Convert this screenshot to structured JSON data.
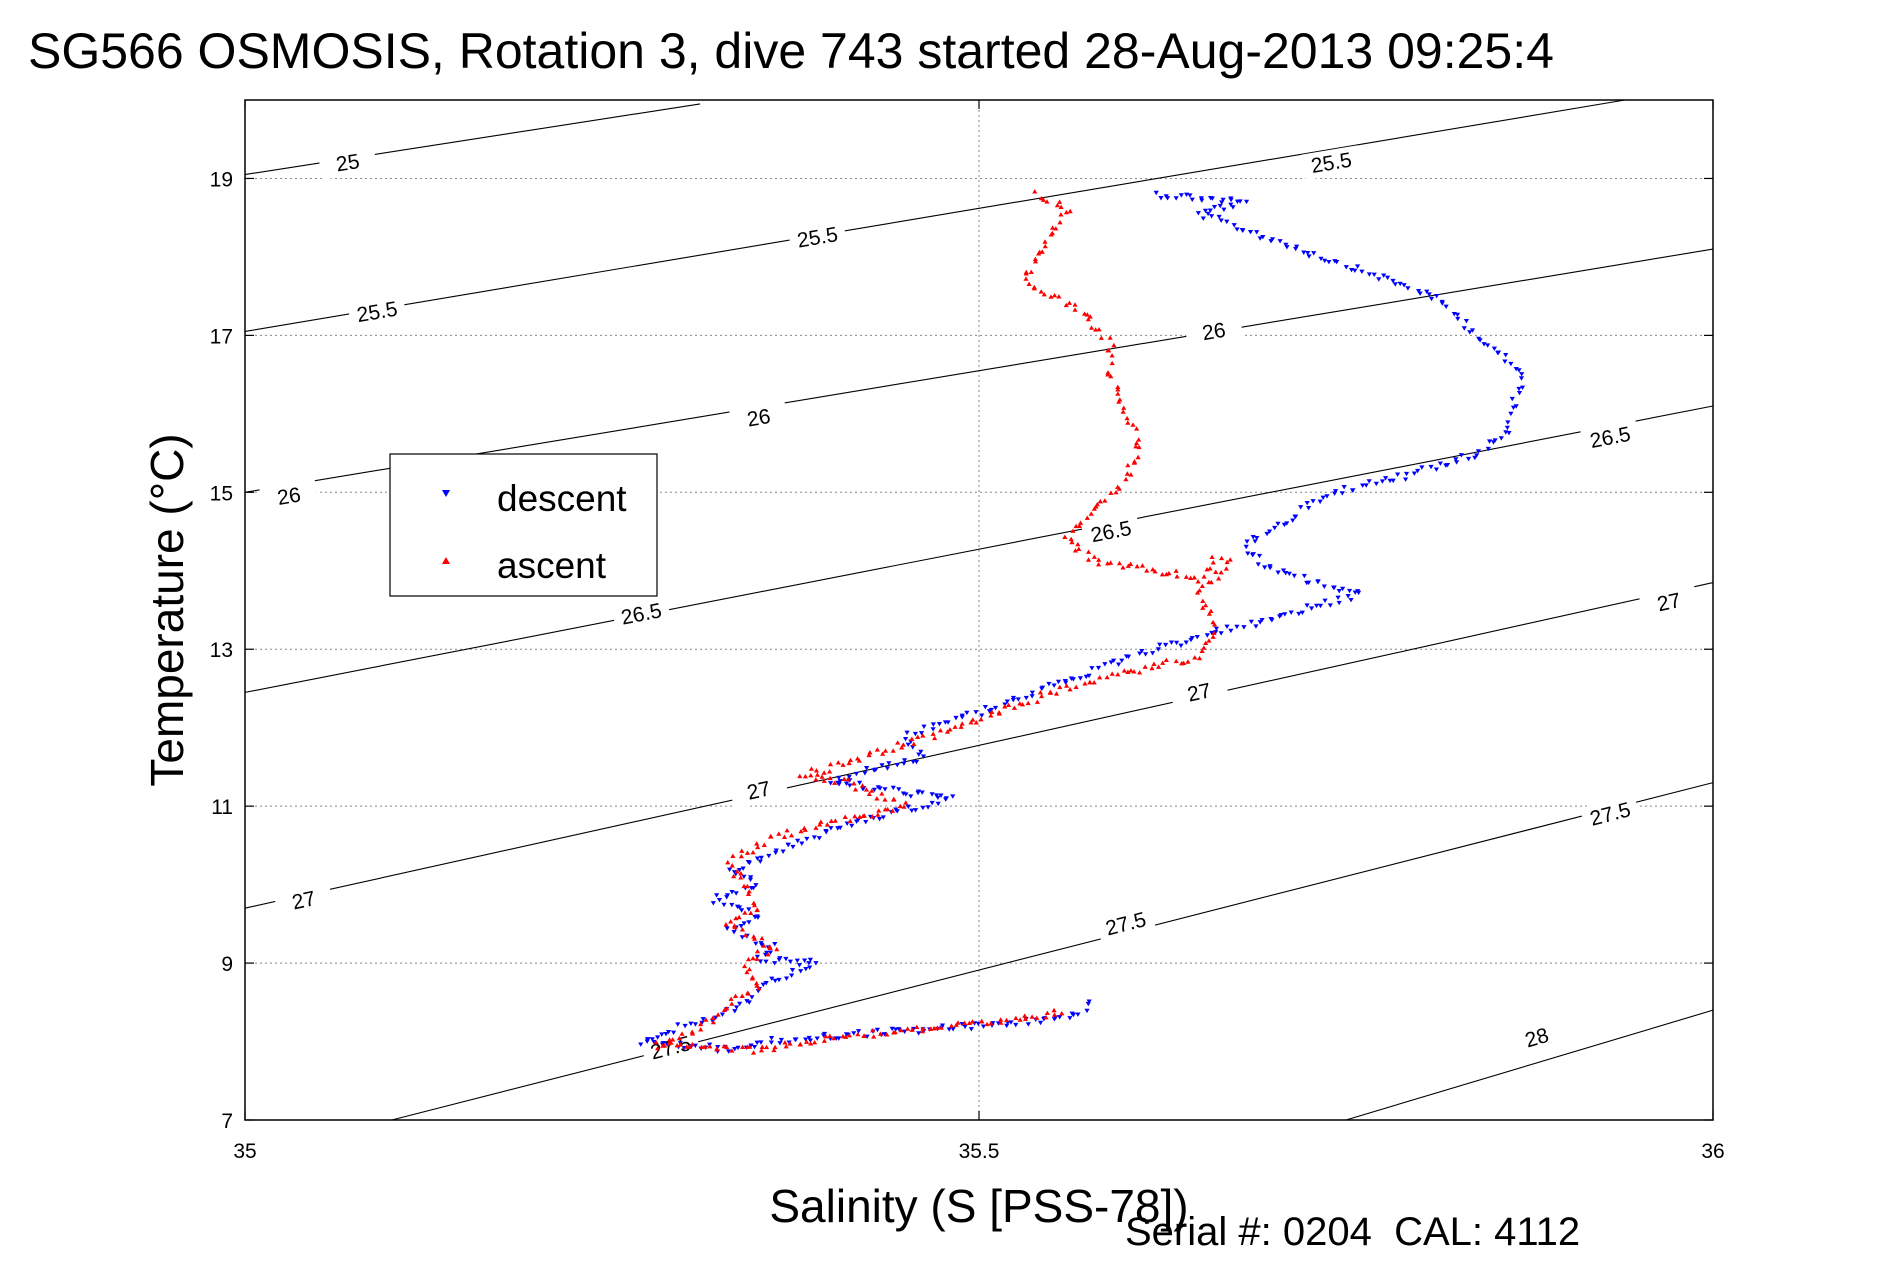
{
  "chart_data": {
    "type": "scatter",
    "title": "SG566 OSMOSIS, Rotation 3, dive 743 started 28-Aug-2013 09:25:4",
    "xlabel": "Salinity (S [PSS-78])",
    "ylabel": "Temperature (°C)",
    "xlim": [
      35,
      36
    ],
    "ylim": [
      7,
      20
    ],
    "x_ticks": [
      "35",
      "35.5",
      "36"
    ],
    "y_ticks": [
      "7",
      "9",
      "11",
      "13",
      "15",
      "17",
      "19"
    ],
    "grid": true,
    "legend_position": "left-middle",
    "footer": "Serial #: 0204  CAL: 4112",
    "density_contours": [
      {
        "level": "25",
        "start": [
          35.0,
          19.05
        ],
        "end": [
          35.31,
          19.95
        ],
        "labels": [
          [
            35.07,
            19.2
          ]
        ]
      },
      {
        "level": "25.5",
        "start": [
          35.0,
          17.05
        ],
        "end": [
          35.94,
          20.0
        ],
        "labels": [
          [
            35.09,
            17.3
          ],
          [
            35.39,
            18.25
          ],
          [
            35.74,
            19.2
          ]
        ]
      },
      {
        "level": "26",
        "start": [
          35.0,
          15.0
        ],
        "end": [
          36.0,
          18.1
        ],
        "labels": [
          [
            35.03,
            14.95
          ],
          [
            35.35,
            15.95
          ],
          [
            35.66,
            17.05
          ]
        ]
      },
      {
        "level": "26.5",
        "start": [
          35.0,
          12.45
        ],
        "end": [
          36.0,
          16.1
        ],
        "labels": [
          [
            35.27,
            13.45
          ],
          [
            35.59,
            14.5
          ],
          [
            35.93,
            15.7
          ]
        ]
      },
      {
        "level": "27",
        "start": [
          35.0,
          9.7
        ],
        "end": [
          36.0,
          13.85
        ],
        "labels": [
          [
            35.04,
            9.8
          ],
          [
            35.35,
            11.2
          ],
          [
            35.65,
            12.45
          ],
          [
            35.97,
            13.6
          ]
        ]
      },
      {
        "level": "27.5",
        "start": [
          35.1,
          7.0
        ],
        "end": [
          36.0,
          11.3
        ],
        "labels": [
          [
            35.29,
            7.92
          ],
          [
            35.6,
            9.5
          ],
          [
            35.93,
            10.9
          ]
        ]
      },
      {
        "level": "28",
        "start": [
          35.75,
          7.0
        ],
        "end": [
          36.0,
          8.4
        ],
        "labels": [
          [
            35.88,
            8.05
          ]
        ]
      }
    ],
    "series": [
      {
        "name": "descent",
        "color": "#0000ff",
        "marker": "triangle-down",
        "path": [
          [
            35.62,
            18.8
          ],
          [
            35.68,
            18.7
          ],
          [
            35.65,
            18.55
          ],
          [
            35.81,
            17.5
          ],
          [
            35.87,
            16.5
          ],
          [
            35.86,
            15.8
          ],
          [
            35.84,
            15.5
          ],
          [
            35.79,
            15.2
          ],
          [
            35.74,
            15.0
          ],
          [
            35.68,
            14.3
          ],
          [
            35.7,
            14.0
          ],
          [
            35.74,
            13.8
          ],
          [
            35.76,
            13.7
          ],
          [
            35.72,
            13.5
          ],
          [
            35.68,
            13.3
          ],
          [
            35.62,
            13.0
          ],
          [
            35.56,
            12.6
          ],
          [
            35.5,
            12.2
          ],
          [
            35.45,
            11.9
          ],
          [
            35.46,
            11.6
          ],
          [
            35.43,
            11.5
          ],
          [
            35.4,
            11.3
          ],
          [
            35.48,
            11.1
          ],
          [
            35.44,
            10.9
          ],
          [
            35.4,
            10.7
          ],
          [
            35.36,
            10.4
          ],
          [
            35.33,
            10.15
          ],
          [
            35.35,
            10.0
          ],
          [
            35.32,
            9.8
          ],
          [
            35.35,
            9.6
          ],
          [
            35.33,
            9.4
          ],
          [
            35.36,
            9.2
          ],
          [
            35.35,
            9.05
          ],
          [
            35.39,
            9.0
          ],
          [
            35.36,
            8.8
          ],
          [
            35.34,
            8.5
          ],
          [
            35.32,
            8.3
          ],
          [
            35.3,
            8.2
          ],
          [
            35.27,
            8.0
          ],
          [
            35.33,
            7.9
          ],
          [
            35.36,
            8.0
          ],
          [
            35.42,
            8.1
          ],
          [
            35.5,
            8.2
          ],
          [
            35.56,
            8.3
          ],
          [
            35.58,
            8.5
          ]
        ]
      },
      {
        "name": "ascent",
        "color": "#ff0000",
        "marker": "triangle-up",
        "path": [
          [
            35.54,
            18.8
          ],
          [
            35.56,
            18.6
          ],
          [
            35.55,
            18.3
          ],
          [
            35.54,
            18.0
          ],
          [
            35.53,
            17.7
          ],
          [
            35.57,
            17.3
          ],
          [
            35.59,
            16.9
          ],
          [
            35.59,
            16.5
          ],
          [
            35.6,
            16.0
          ],
          [
            35.61,
            15.6
          ],
          [
            35.6,
            15.2
          ],
          [
            35.58,
            14.8
          ],
          [
            35.56,
            14.4
          ],
          [
            35.58,
            14.1
          ],
          [
            35.62,
            14.0
          ],
          [
            35.65,
            13.9
          ],
          [
            35.66,
            14.15
          ],
          [
            35.67,
            14.1
          ],
          [
            35.65,
            13.7
          ],
          [
            35.66,
            13.3
          ],
          [
            35.65,
            12.9
          ],
          [
            35.6,
            12.7
          ],
          [
            35.55,
            12.45
          ],
          [
            35.5,
            12.1
          ],
          [
            35.47,
            11.9
          ],
          [
            35.44,
            11.75
          ],
          [
            35.4,
            11.5
          ],
          [
            35.38,
            11.4
          ],
          [
            35.41,
            11.3
          ],
          [
            35.45,
            11.0
          ],
          [
            35.4,
            10.8
          ],
          [
            35.36,
            10.6
          ],
          [
            35.33,
            10.3
          ],
          [
            35.34,
            10.0
          ],
          [
            35.35,
            9.7
          ],
          [
            35.33,
            9.5
          ],
          [
            35.36,
            9.2
          ],
          [
            35.34,
            9.0
          ],
          [
            35.35,
            8.7
          ],
          [
            35.33,
            8.5
          ],
          [
            35.32,
            8.3
          ],
          [
            35.3,
            8.1
          ],
          [
            35.28,
            7.95
          ],
          [
            35.35,
            7.9
          ],
          [
            35.4,
            8.05
          ],
          [
            35.45,
            8.15
          ],
          [
            35.52,
            8.25
          ],
          [
            35.56,
            8.4
          ]
        ]
      }
    ]
  }
}
